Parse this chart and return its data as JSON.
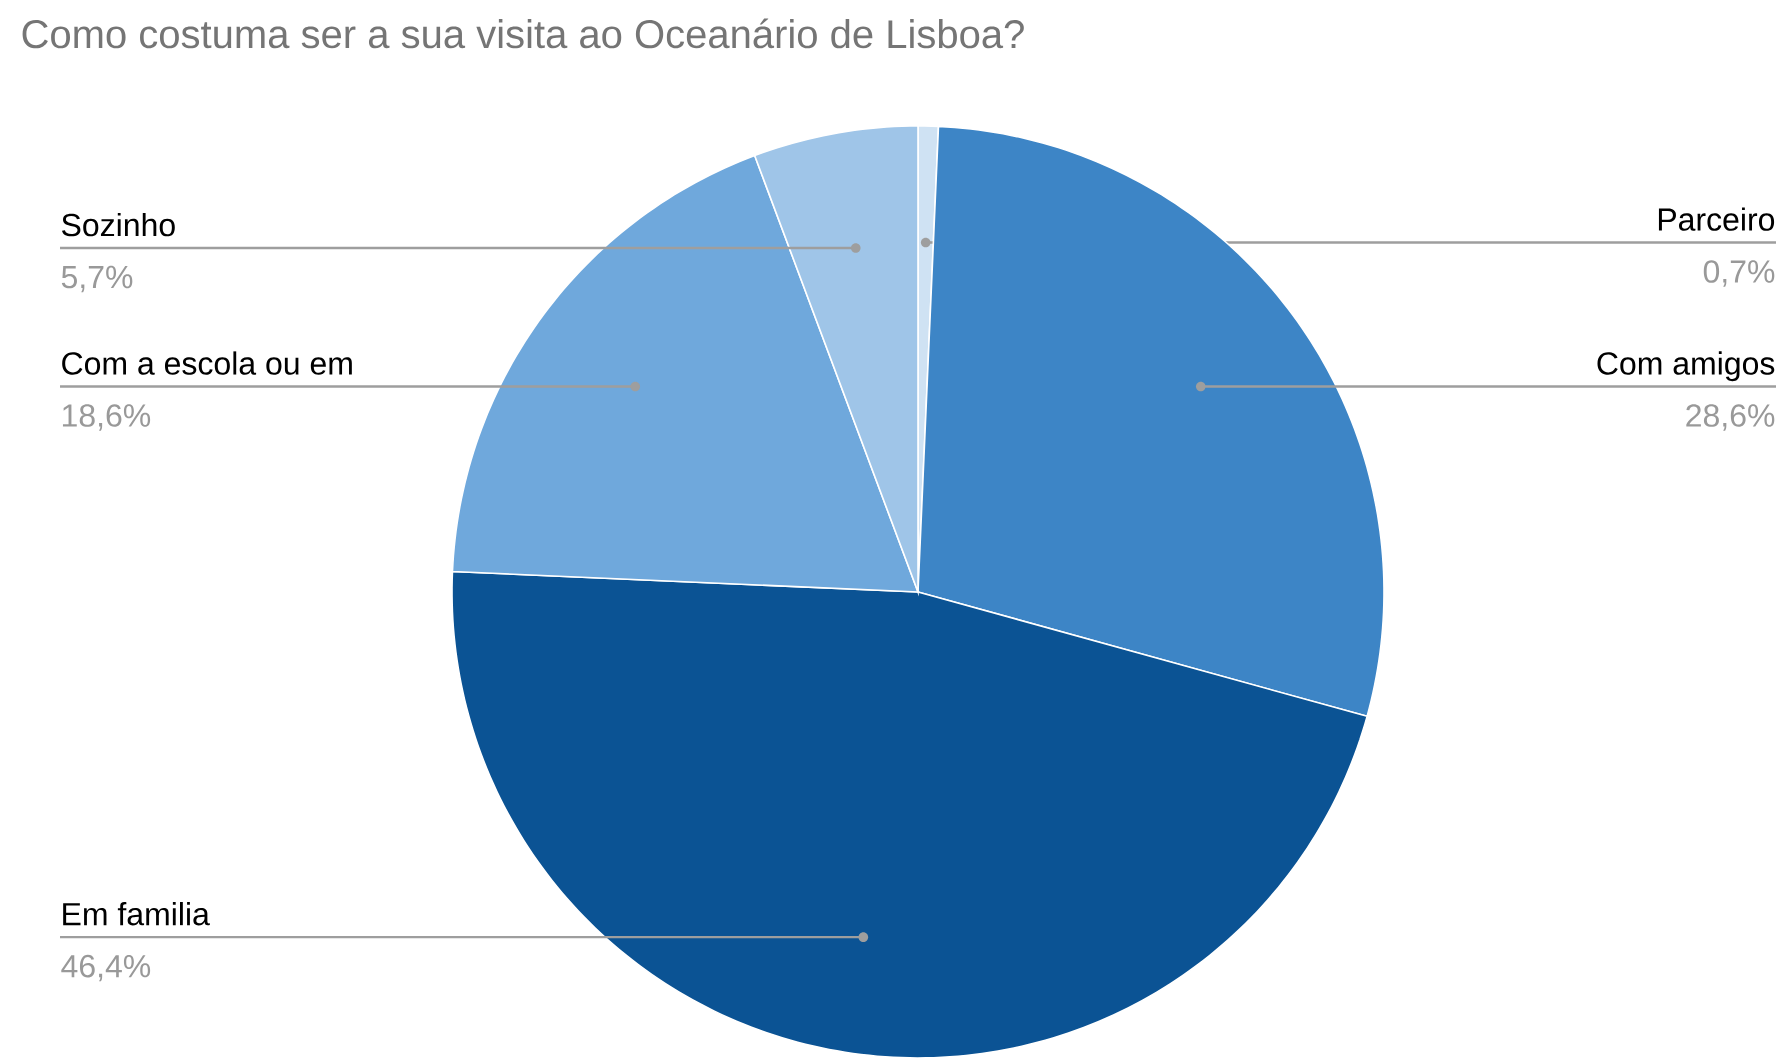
{
  "chart_data": {
    "type": "pie",
    "title": "Como costuma ser a sua visita ao Oceanário de Lisboa?",
    "categories": [
      "Parceiro",
      "Com amigos",
      "Em familia",
      "Com a escola ou em",
      "Sozinho"
    ],
    "values": [
      0.7,
      28.6,
      46.4,
      18.6,
      5.7
    ],
    "value_labels": [
      "0,7%",
      "28,6%",
      "46,4%",
      "18,6%",
      "5,7%"
    ],
    "colors": [
      "#cfe2f3",
      "#3d85c6",
      "#0b5394",
      "#6fa8dc",
      "#9fc5e8"
    ]
  }
}
